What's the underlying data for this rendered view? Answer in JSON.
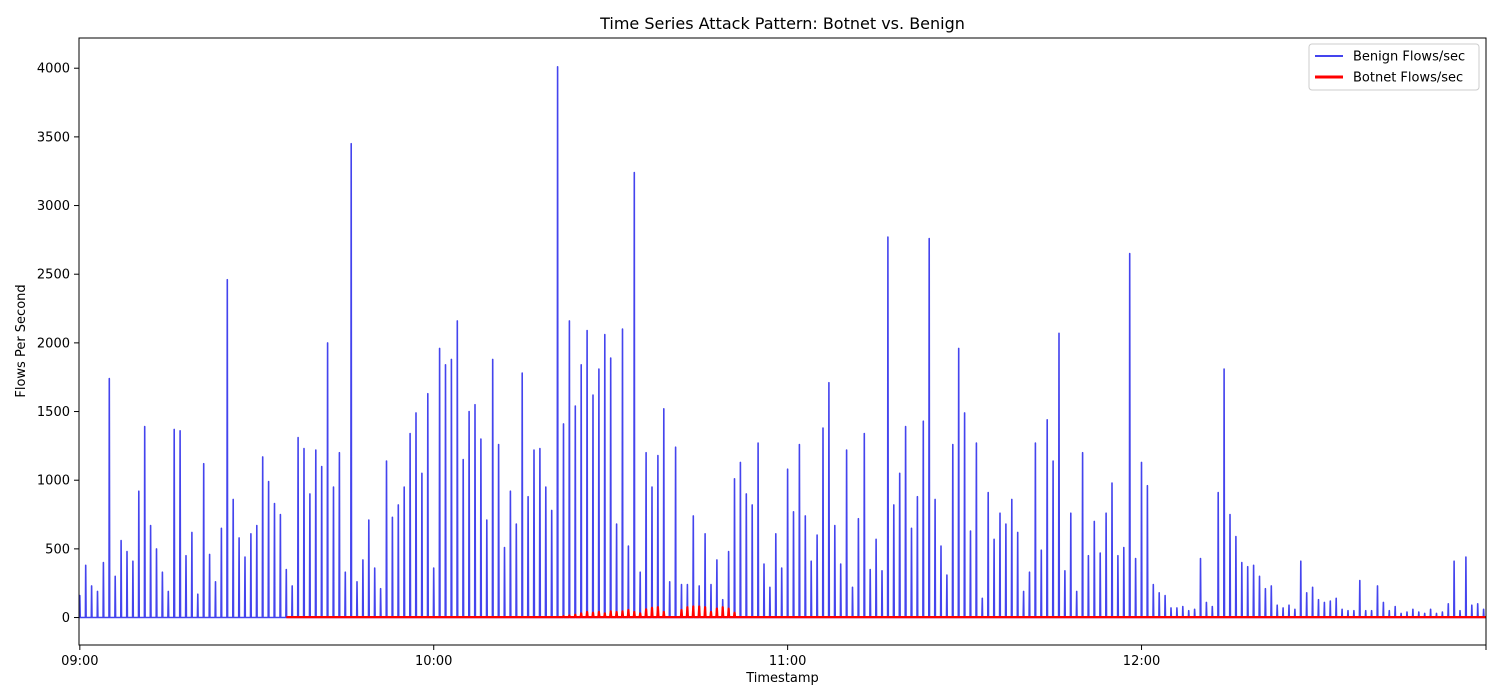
{
  "chart_data": {
    "type": "line",
    "title": "Time Series Attack Pattern: Botnet vs. Benign",
    "xlabel": "Timestamp",
    "ylabel": "Flows Per Second",
    "x_ticks": [
      "09:00",
      "10:00",
      "11:00",
      "12:00"
    ],
    "x_range": [
      "08:59",
      "12:58"
    ],
    "ylim": [
      -200,
      4220
    ],
    "y_ticks": [
      0,
      500,
      1000,
      1500,
      2000,
      2500,
      3000,
      3500,
      4000
    ],
    "grid": false,
    "legend_position": "top-right",
    "series": [
      {
        "name": "Benign Flows/sec",
        "color": "#4444ee",
        "points": [
          [
            "09:00",
            160
          ],
          [
            "09:01",
            380
          ],
          [
            "09:02",
            230
          ],
          [
            "09:03",
            190
          ],
          [
            "09:04",
            400
          ],
          [
            "09:05",
            1740
          ],
          [
            "09:06",
            300
          ],
          [
            "09:07",
            560
          ],
          [
            "09:08",
            480
          ],
          [
            "09:09",
            410
          ],
          [
            "09:10",
            920
          ],
          [
            "09:11",
            1390
          ],
          [
            "09:12",
            670
          ],
          [
            "09:13",
            500
          ],
          [
            "09:14",
            330
          ],
          [
            "09:15",
            190
          ],
          [
            "09:16",
            1370
          ],
          [
            "09:17",
            1360
          ],
          [
            "09:18",
            450
          ],
          [
            "09:19",
            620
          ],
          [
            "09:20",
            170
          ],
          [
            "09:21",
            1120
          ],
          [
            "09:22",
            460
          ],
          [
            "09:23",
            260
          ],
          [
            "09:24",
            650
          ],
          [
            "09:25",
            2460
          ],
          [
            "09:26",
            860
          ],
          [
            "09:27",
            580
          ],
          [
            "09:28",
            440
          ],
          [
            "09:29",
            610
          ],
          [
            "09:30",
            670
          ],
          [
            "09:31",
            1170
          ],
          [
            "09:32",
            990
          ],
          [
            "09:33",
            830
          ],
          [
            "09:34",
            750
          ],
          [
            "09:35",
            350
          ],
          [
            "09:36",
            230
          ],
          [
            "09:37",
            1310
          ],
          [
            "09:38",
            1230
          ],
          [
            "09:39",
            900
          ],
          [
            "09:40",
            1220
          ],
          [
            "09:41",
            1100
          ],
          [
            "09:42",
            2000
          ],
          [
            "09:43",
            950
          ],
          [
            "09:44",
            1200
          ],
          [
            "09:45",
            330
          ],
          [
            "09:46",
            3450
          ],
          [
            "09:47",
            260
          ],
          [
            "09:48",
            420
          ],
          [
            "09:49",
            710
          ],
          [
            "09:50",
            360
          ],
          [
            "09:51",
            210
          ],
          [
            "09:52",
            1140
          ],
          [
            "09:53",
            730
          ],
          [
            "09:54",
            820
          ],
          [
            "09:55",
            950
          ],
          [
            "09:56",
            1340
          ],
          [
            "09:57",
            1490
          ],
          [
            "09:58",
            1050
          ],
          [
            "09:59",
            1630
          ],
          [
            "10:00",
            360
          ],
          [
            "10:01",
            1960
          ],
          [
            "10:02",
            1840
          ],
          [
            "10:03",
            1880
          ],
          [
            "10:04",
            2160
          ],
          [
            "10:05",
            1150
          ],
          [
            "10:06",
            1500
          ],
          [
            "10:07",
            1550
          ],
          [
            "10:08",
            1300
          ],
          [
            "10:09",
            710
          ],
          [
            "10:10",
            1880
          ],
          [
            "10:11",
            1260
          ],
          [
            "10:12",
            510
          ],
          [
            "10:13",
            920
          ],
          [
            "10:14",
            680
          ],
          [
            "10:15",
            1780
          ],
          [
            "10:16",
            880
          ],
          [
            "10:17",
            1220
          ],
          [
            "10:18",
            1230
          ],
          [
            "10:19",
            950
          ],
          [
            "10:20",
            780
          ],
          [
            "10:21",
            4010
          ],
          [
            "10:22",
            1410
          ],
          [
            "10:23",
            2160
          ],
          [
            "10:24",
            1540
          ],
          [
            "10:25",
            1840
          ],
          [
            "10:26",
            2090
          ],
          [
            "10:27",
            1620
          ],
          [
            "10:28",
            1810
          ],
          [
            "10:29",
            2060
          ],
          [
            "10:30",
            1890
          ],
          [
            "10:31",
            680
          ],
          [
            "10:32",
            2100
          ],
          [
            "10:33",
            520
          ],
          [
            "10:34",
            3240
          ],
          [
            "10:35",
            330
          ],
          [
            "10:36",
            1200
          ],
          [
            "10:37",
            950
          ],
          [
            "10:38",
            1180
          ],
          [
            "10:39",
            1520
          ],
          [
            "10:40",
            260
          ],
          [
            "10:41",
            1240
          ],
          [
            "10:42",
            240
          ],
          [
            "10:43",
            240
          ],
          [
            "10:44",
            740
          ],
          [
            "10:45",
            230
          ],
          [
            "10:46",
            610
          ],
          [
            "10:47",
            240
          ],
          [
            "10:48",
            420
          ],
          [
            "10:49",
            130
          ],
          [
            "10:50",
            480
          ],
          [
            "10:51",
            1010
          ],
          [
            "10:52",
            1130
          ],
          [
            "10:53",
            900
          ],
          [
            "10:54",
            820
          ],
          [
            "10:55",
            1270
          ],
          [
            "10:56",
            390
          ],
          [
            "10:57",
            220
          ],
          [
            "10:58",
            610
          ],
          [
            "10:59",
            360
          ],
          [
            "11:00",
            1080
          ],
          [
            "11:01",
            770
          ],
          [
            "11:02",
            1260
          ],
          [
            "11:03",
            740
          ],
          [
            "11:04",
            410
          ],
          [
            "11:05",
            600
          ],
          [
            "11:06",
            1380
          ],
          [
            "11:07",
            1710
          ],
          [
            "11:08",
            670
          ],
          [
            "11:09",
            390
          ],
          [
            "11:10",
            1220
          ],
          [
            "11:11",
            220
          ],
          [
            "11:12",
            720
          ],
          [
            "11:13",
            1340
          ],
          [
            "11:14",
            350
          ],
          [
            "11:15",
            570
          ],
          [
            "11:16",
            340
          ],
          [
            "11:17",
            2770
          ],
          [
            "11:18",
            820
          ],
          [
            "11:19",
            1050
          ],
          [
            "11:20",
            1390
          ],
          [
            "11:21",
            650
          ],
          [
            "11:22",
            880
          ],
          [
            "11:23",
            1430
          ],
          [
            "11:24",
            2760
          ],
          [
            "11:25",
            860
          ],
          [
            "11:26",
            520
          ],
          [
            "11:27",
            310
          ],
          [
            "11:28",
            1260
          ],
          [
            "11:29",
            1960
          ],
          [
            "11:30",
            1490
          ],
          [
            "11:31",
            630
          ],
          [
            "11:32",
            1270
          ],
          [
            "11:33",
            140
          ],
          [
            "11:34",
            910
          ],
          [
            "11:35",
            570
          ],
          [
            "11:36",
            760
          ],
          [
            "11:37",
            680
          ],
          [
            "11:38",
            860
          ],
          [
            "11:39",
            620
          ],
          [
            "11:40",
            190
          ],
          [
            "11:41",
            330
          ],
          [
            "11:42",
            1270
          ],
          [
            "11:43",
            490
          ],
          [
            "11:44",
            1440
          ],
          [
            "11:45",
            1140
          ],
          [
            "11:46",
            2070
          ],
          [
            "11:47",
            340
          ],
          [
            "11:48",
            760
          ],
          [
            "11:49",
            190
          ],
          [
            "11:50",
            1200
          ],
          [
            "11:51",
            450
          ],
          [
            "11:52",
            700
          ],
          [
            "11:53",
            470
          ],
          [
            "11:54",
            760
          ],
          [
            "11:55",
            980
          ],
          [
            "11:56",
            450
          ],
          [
            "11:57",
            510
          ],
          [
            "11:58",
            2650
          ],
          [
            "11:59",
            430
          ],
          [
            "12:00",
            1130
          ],
          [
            "12:01",
            960
          ],
          [
            "12:02",
            240
          ],
          [
            "12:03",
            180
          ],
          [
            "12:04",
            160
          ],
          [
            "12:05",
            70
          ],
          [
            "12:06",
            70
          ],
          [
            "12:07",
            80
          ],
          [
            "12:08",
            50
          ],
          [
            "12:09",
            60
          ],
          [
            "12:10",
            430
          ],
          [
            "12:11",
            110
          ],
          [
            "12:12",
            80
          ],
          [
            "12:13",
            910
          ],
          [
            "12:14",
            1810
          ],
          [
            "12:15",
            750
          ],
          [
            "12:16",
            590
          ],
          [
            "12:17",
            400
          ],
          [
            "12:18",
            370
          ],
          [
            "12:19",
            380
          ],
          [
            "12:20",
            300
          ],
          [
            "12:21",
            210
          ],
          [
            "12:22",
            230
          ],
          [
            "12:23",
            90
          ],
          [
            "12:24",
            70
          ],
          [
            "12:25",
            90
          ],
          [
            "12:26",
            60
          ],
          [
            "12:27",
            410
          ],
          [
            "12:28",
            180
          ],
          [
            "12:29",
            220
          ],
          [
            "12:30",
            130
          ],
          [
            "12:31",
            110
          ],
          [
            "12:32",
            120
          ],
          [
            "12:33",
            140
          ],
          [
            "12:34",
            60
          ],
          [
            "12:35",
            50
          ],
          [
            "12:36",
            50
          ],
          [
            "12:37",
            270
          ],
          [
            "12:38",
            50
          ],
          [
            "12:39",
            50
          ],
          [
            "12:40",
            230
          ],
          [
            "12:41",
            110
          ],
          [
            "12:42",
            50
          ],
          [
            "12:43",
            80
          ],
          [
            "12:44",
            30
          ],
          [
            "12:45",
            40
          ],
          [
            "12:46",
            60
          ],
          [
            "12:47",
            40
          ],
          [
            "12:48",
            30
          ],
          [
            "12:49",
            60
          ],
          [
            "12:50",
            30
          ],
          [
            "12:51",
            40
          ],
          [
            "12:52",
            100
          ],
          [
            "12:53",
            410
          ],
          [
            "12:54",
            50
          ],
          [
            "12:55",
            440
          ],
          [
            "12:56",
            90
          ],
          [
            "12:57",
            100
          ],
          [
            "12:58",
            60
          ]
        ]
      },
      {
        "name": "Botnet Flows/sec",
        "color": "#ff0000",
        "x_start": "09:35",
        "baseline": 3,
        "points": [
          [
            "10:22",
            10
          ],
          [
            "10:23",
            15
          ],
          [
            "10:24",
            20
          ],
          [
            "10:25",
            30
          ],
          [
            "10:26",
            40
          ],
          [
            "10:27",
            35
          ],
          [
            "10:28",
            40
          ],
          [
            "10:29",
            30
          ],
          [
            "10:30",
            45
          ],
          [
            "10:31",
            40
          ],
          [
            "10:32",
            45
          ],
          [
            "10:33",
            55
          ],
          [
            "10:34",
            40
          ],
          [
            "10:35",
            30
          ],
          [
            "10:36",
            60
          ],
          [
            "10:37",
            70
          ],
          [
            "10:38",
            75
          ],
          [
            "10:39",
            40
          ],
          [
            "10:42",
            55
          ],
          [
            "10:43",
            75
          ],
          [
            "10:44",
            80
          ],
          [
            "10:45",
            80
          ],
          [
            "10:46",
            75
          ],
          [
            "10:47",
            40
          ],
          [
            "10:48",
            65
          ],
          [
            "10:49",
            75
          ],
          [
            "10:50",
            65
          ],
          [
            "10:51",
            35
          ]
        ]
      }
    ]
  }
}
